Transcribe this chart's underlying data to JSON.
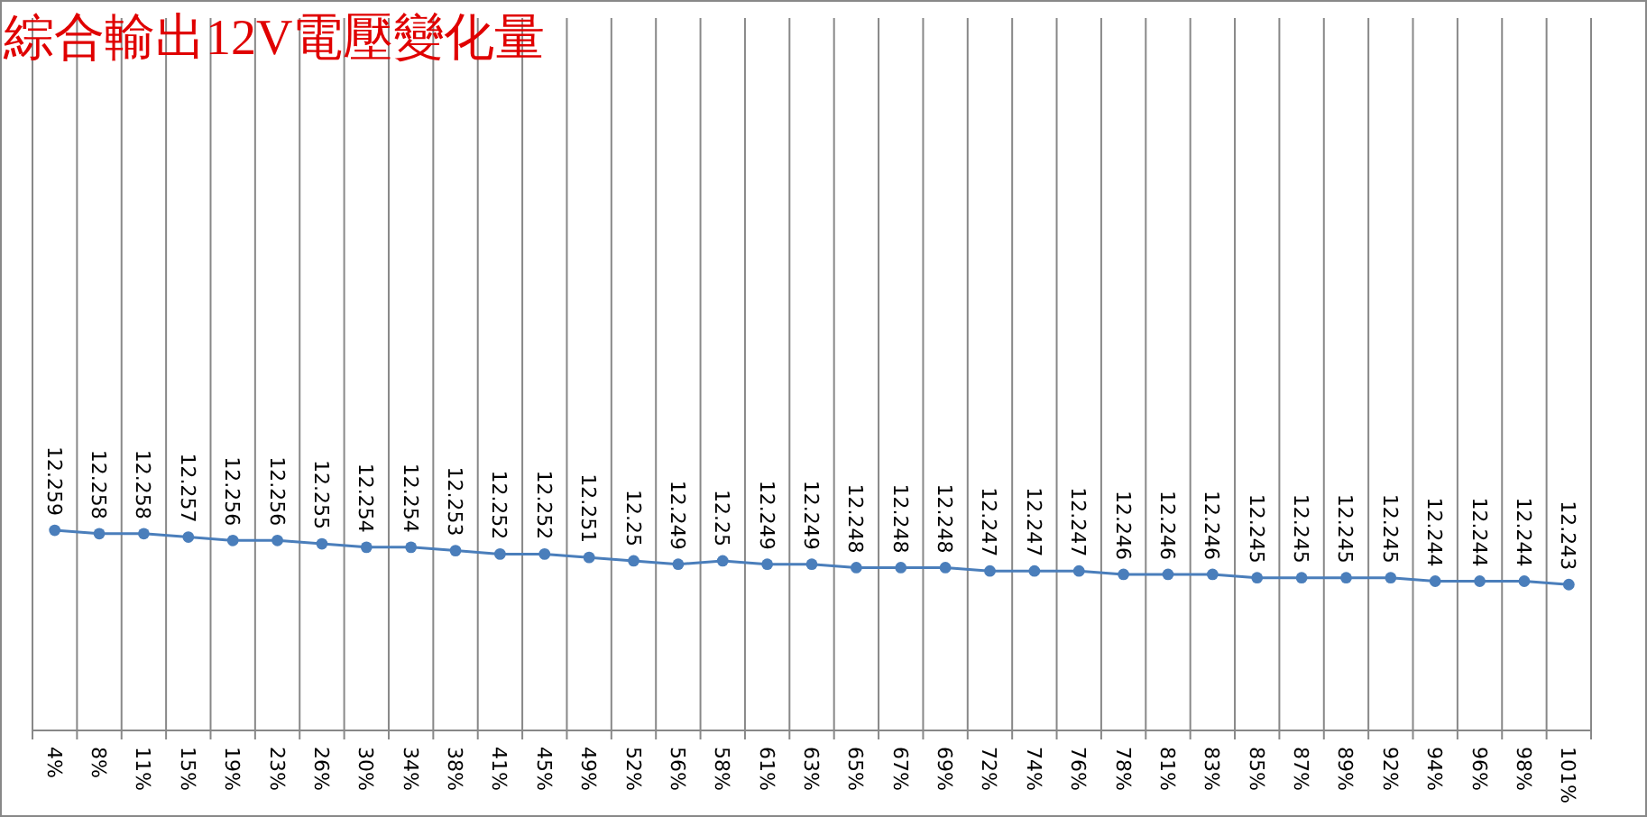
{
  "chart_data": {
    "type": "line",
    "title": "綜合輸出12V電壓變化量",
    "categories": [
      "4%",
      "8%",
      "11%",
      "15%",
      "19%",
      "23%",
      "26%",
      "30%",
      "34%",
      "38%",
      "41%",
      "45%",
      "49%",
      "52%",
      "56%",
      "58%",
      "61%",
      "63%",
      "65%",
      "67%",
      "69%",
      "72%",
      "74%",
      "76%",
      "78%",
      "81%",
      "83%",
      "85%",
      "87%",
      "89%",
      "92%",
      "94%",
      "96%",
      "98%",
      "101%"
    ],
    "series": [
      {
        "color": "#4a7ebb",
        "values": [
          12.259,
          12.258,
          12.258,
          12.257,
          12.256,
          12.256,
          12.255,
          12.254,
          12.254,
          12.253,
          12.252,
          12.252,
          12.251,
          12.25,
          12.249,
          12.25,
          12.249,
          12.249,
          12.248,
          12.248,
          12.248,
          12.247,
          12.247,
          12.247,
          12.246,
          12.246,
          12.246,
          12.245,
          12.245,
          12.245,
          12.245,
          12.244,
          12.244,
          12.244,
          12.243
        ]
      }
    ],
    "ylim": [
      12.2,
      12.41
    ],
    "tick_labels": "x",
    "grid": "x",
    "marker": "circle",
    "line_style": "solid",
    "data_labels": true
  }
}
